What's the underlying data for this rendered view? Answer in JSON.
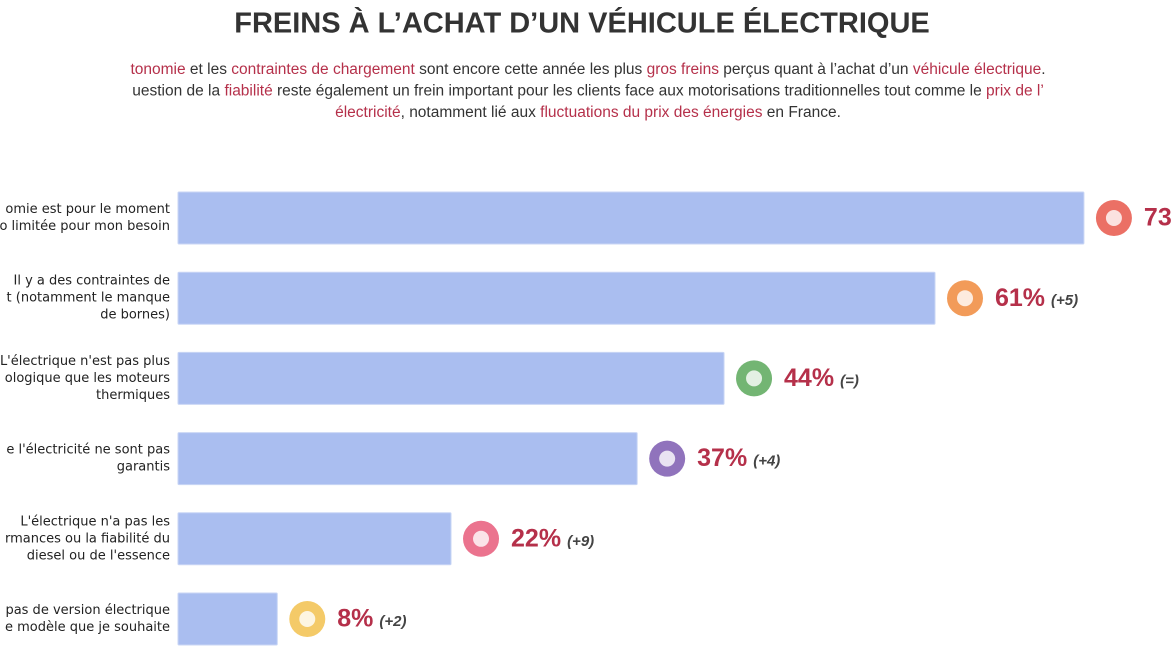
{
  "chart_data": {
    "type": "bar",
    "title": "FREINS À L’ACHAT D’UN VÉHICULE ÉLECTRIQUE",
    "subtitle_lines": [
      [
        {
          "text": "tonomie",
          "color": "#b5304a"
        },
        {
          "text": " et les ",
          "color": "#333333"
        },
        {
          "text": "contraintes de chargement",
          "color": "#b5304a"
        },
        {
          "text": " sont encore cette année les plus ",
          "color": "#333333"
        },
        {
          "text": "gros freins",
          "color": "#b5304a"
        },
        {
          "text": " perçus quant à l’achat d’un ",
          "color": "#333333"
        },
        {
          "text": "véhicule électrique",
          "color": "#b5304a"
        },
        {
          "text": ".",
          "color": "#333333"
        }
      ],
      [
        {
          "text": "uestion de la ",
          "color": "#333333"
        },
        {
          "text": "fiabilité",
          "color": "#b5304a"
        },
        {
          "text": " reste également un frein important pour les clients face aux motorisations traditionnelles tout comme le ",
          "color": "#333333"
        },
        {
          "text": "prix de l’",
          "color": "#b5304a"
        }
      ],
      [
        {
          "text": "électricité",
          "color": "#b5304a"
        },
        {
          "text": ", notamment lié aux ",
          "color": "#333333"
        },
        {
          "text": "fluctuations du prix des énergies",
          "color": "#b5304a"
        },
        {
          "text": " en France.",
          "color": "#333333"
        }
      ]
    ],
    "categories": [
      [
        "omie est pour le moment",
        "o limitée pour mon besoin"
      ],
      [
        "Il y a des contraintes de",
        "t (notamment le manque",
        "de bornes)"
      ],
      [
        "L'électrique n'est pas plus",
        "ologique que les moteurs",
        "thermiques"
      ],
      [
        "e l'électricité ne sont pas",
        "garantis"
      ],
      [
        "L'électrique n'a pas les",
        "rmances ou la fiabilité du",
        "diesel ou de l'essence"
      ],
      [
        "pas de version électrique",
        "e modèle que je souhaite"
      ]
    ],
    "values": [
      73,
      61,
      44,
      37,
      22,
      8
    ],
    "value_labels": [
      "73",
      "61%",
      "44%",
      "37%",
      "22%",
      "8%"
    ],
    "changes": [
      null,
      "(+5)",
      "(=)",
      "(+4)",
      "(+9)",
      "(+2)"
    ],
    "color": "#aabef0",
    "label_color": "#b5304a"
  }
}
